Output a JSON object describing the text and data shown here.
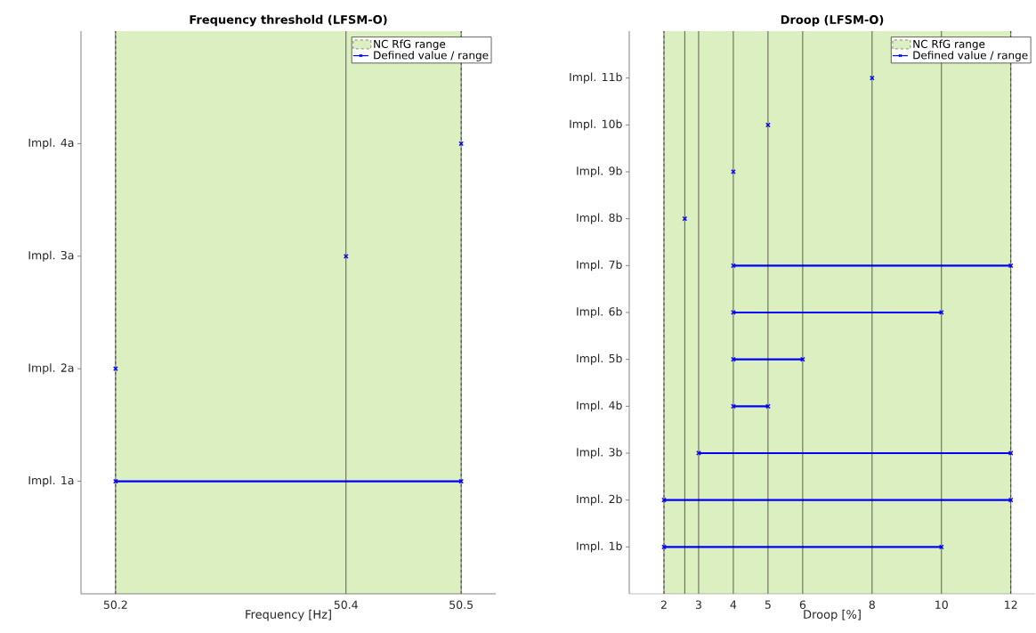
{
  "chart_data": [
    {
      "type": "bar",
      "orientation": "horizontal",
      "title": "Frequency threshold (LFSM-O)",
      "xlabel": "Frequency [Hz]",
      "categories": [
        "Impl. 4a",
        "Impl. 3a",
        "Impl. 2a",
        "Impl. 1a"
      ],
      "series": [
        {
          "name": "Defined value / range",
          "color": "#0000ff",
          "base": [
            null,
            null,
            null,
            50.2
          ],
          "values": [
            null,
            null,
            null,
            0.3
          ]
        },
        {
          "type": "scatter",
          "color": "#0000ff",
          "x": [
            "Impl. 4a",
            "Impl. 3a",
            "Impl. 2a",
            "Impl. 1a",
            "Impl. 1a"
          ],
          "values": [
            50.5,
            50.4,
            50.2,
            50.2,
            50.5
          ]
        }
      ],
      "xlim": [
        50.17,
        50.53
      ],
      "xticks": [
        50.2,
        50.4,
        50.5
      ],
      "grid": "x",
      "legend": "top right",
      "marker": "cross",
      "bands": [
        {
          "axis": "x",
          "from": 50.2,
          "to": 50.5,
          "label": "NC RfG range",
          "color": "#dbefc0"
        }
      ]
    },
    {
      "type": "bar",
      "orientation": "horizontal",
      "title": "Droop (LFSM-O)",
      "xlabel": "Droop [%]",
      "categories": [
        "Impl. 11b",
        "Impl. 10b",
        "Impl. 9b",
        "Impl. 8b",
        "Impl. 7b",
        "Impl. 6b",
        "Impl. 5b",
        "Impl. 4b",
        "Impl. 3b",
        "Impl. 2b",
        "Impl. 1b"
      ],
      "series": [
        {
          "name": "Defined value / range",
          "color": "#0000ff",
          "base": [
            null,
            null,
            null,
            null,
            4,
            4,
            4,
            4,
            3,
            2,
            2
          ],
          "values": [
            null,
            null,
            null,
            null,
            8,
            6,
            2,
            1,
            9,
            10,
            8
          ]
        },
        {
          "type": "scatter",
          "color": "#0000ff",
          "x": [
            "Impl. 11b",
            "Impl. 10b",
            "Impl. 9b",
            "Impl. 8b",
            "Impl. 7b",
            "Impl. 7b",
            "Impl. 6b",
            "Impl. 6b",
            "Impl. 5b",
            "Impl. 5b",
            "Impl. 4b",
            "Impl. 4b",
            "Impl. 3b",
            "Impl. 3b",
            "Impl. 2b",
            "Impl. 2b",
            "Impl. 1b",
            "Impl. 1b"
          ],
          "values": [
            8,
            5,
            4,
            2.6,
            4,
            12,
            4,
            10,
            4,
            6,
            4,
            5,
            3,
            12,
            2,
            12,
            2,
            10
          ]
        }
      ],
      "xlim": [
        1,
        12.7
      ],
      "xticks": [
        2,
        {
          "value": 2.6,
          "label": null
        },
        3,
        4,
        5,
        6,
        8,
        10,
        12
      ],
      "grid": "x",
      "legend": "top right",
      "marker": "cross",
      "bands": [
        {
          "axis": "x",
          "from": 2,
          "to": 12,
          "label": "NC RfG range",
          "color": "#dbefc0"
        }
      ]
    }
  ]
}
